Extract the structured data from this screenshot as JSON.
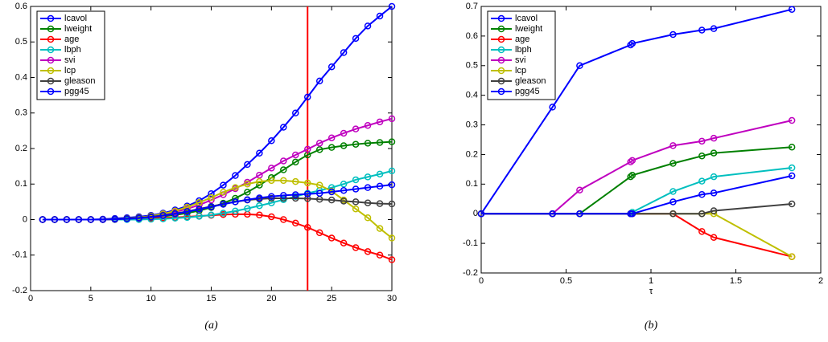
{
  "chart_data": [
    {
      "type": "line",
      "caption": "(a)",
      "x": [
        1,
        2,
        3,
        4,
        5,
        6,
        7,
        8,
        9,
        10,
        11,
        12,
        13,
        14,
        15,
        16,
        17,
        18,
        19,
        20,
        21,
        22,
        23,
        24,
        25,
        26,
        27,
        28,
        29,
        30
      ],
      "xlim": [
        0,
        30
      ],
      "xticks": [
        0,
        5,
        10,
        15,
        20,
        25,
        30
      ],
      "ylim": [
        -0.2,
        0.6
      ],
      "yticks": [
        -0.2,
        -0.1,
        0,
        0.1,
        0.2,
        0.3,
        0.4,
        0.5,
        0.6
      ],
      "legend": "upper left",
      "vline": {
        "x": 23,
        "color": "#ff0000"
      },
      "series": [
        {
          "name": "lcavol",
          "color": "#0000ff",
          "values": [
            0,
            0,
            0,
            0,
            0,
            0.001,
            0.003,
            0.005,
            0.008,
            0.012,
            0.018,
            0.027,
            0.038,
            0.053,
            0.073,
            0.097,
            0.124,
            0.155,
            0.187,
            0.222,
            0.26,
            0.3,
            0.345,
            0.39,
            0.43,
            0.47,
            0.51,
            0.545,
            0.573,
            0.6
          ]
        },
        {
          "name": "lweight",
          "color": "#008000",
          "values": [
            0,
            0,
            0,
            0,
            0,
            0,
            0.001,
            0.002,
            0.004,
            0.006,
            0.009,
            0.013,
            0.018,
            0.025,
            0.034,
            0.046,
            0.06,
            0.077,
            0.097,
            0.118,
            0.14,
            0.162,
            0.182,
            0.197,
            0.203,
            0.208,
            0.212,
            0.215,
            0.217,
            0.219
          ]
        },
        {
          "name": "age",
          "color": "#ff0000",
          "values": [
            0,
            0,
            0,
            0,
            0,
            0,
            0,
            0.001,
            0.002,
            0.003,
            0.005,
            0.006,
            0.008,
            0.01,
            0.012,
            0.014,
            0.015,
            0.015,
            0.013,
            0.008,
            0,
            -0.01,
            -0.022,
            -0.037,
            -0.052,
            -0.066,
            -0.079,
            -0.09,
            -0.1,
            -0.113
          ]
        },
        {
          "name": "lbph",
          "color": "#00bfbf",
          "values": [
            0,
            0,
            0,
            0,
            0,
            0,
            0,
            0,
            0,
            0.001,
            0.002,
            0.004,
            0.006,
            0.009,
            0.013,
            0.018,
            0.024,
            0.031,
            0.039,
            0.047,
            0.056,
            0.065,
            0.074,
            0.082,
            0.09,
            0.1,
            0.112,
            0.12,
            0.128,
            0.137
          ]
        },
        {
          "name": "svi",
          "color": "#bf00bf",
          "values": [
            0,
            0,
            0,
            0,
            0,
            0,
            0.001,
            0.003,
            0.005,
            0.009,
            0.014,
            0.021,
            0.03,
            0.041,
            0.055,
            0.07,
            0.087,
            0.105,
            0.125,
            0.145,
            0.165,
            0.182,
            0.198,
            0.215,
            0.23,
            0.243,
            0.255,
            0.265,
            0.275,
            0.284
          ]
        },
        {
          "name": "lcp",
          "color": "#bfbf00",
          "values": [
            0,
            0,
            0,
            0,
            0,
            0,
            0.001,
            0.003,
            0.006,
            0.01,
            0.016,
            0.024,
            0.035,
            0.048,
            0.062,
            0.077,
            0.09,
            0.1,
            0.107,
            0.11,
            0.11,
            0.107,
            0.103,
            0.097,
            0.08,
            0.055,
            0.03,
            0.005,
            -0.025,
            -0.052
          ]
        },
        {
          "name": "gleason",
          "color": "#404040",
          "values": [
            0,
            0,
            0,
            0,
            0,
            0,
            0.001,
            0.003,
            0.005,
            0.008,
            0.012,
            0.017,
            0.023,
            0.03,
            0.037,
            0.044,
            0.05,
            0.055,
            0.058,
            0.06,
            0.06,
            0.06,
            0.059,
            0.057,
            0.055,
            0.052,
            0.05,
            0.047,
            0.045,
            0.044
          ]
        },
        {
          "name": "pgg45",
          "color": "#0000ff",
          "values": [
            0,
            0,
            0,
            0,
            0,
            0,
            0.001,
            0.002,
            0.004,
            0.007,
            0.011,
            0.016,
            0.022,
            0.029,
            0.036,
            0.043,
            0.05,
            0.056,
            0.061,
            0.065,
            0.068,
            0.07,
            0.072,
            0.074,
            0.078,
            0.082,
            0.086,
            0.09,
            0.094,
            0.098
          ]
        }
      ]
    },
    {
      "type": "line",
      "caption": "(b)",
      "x_label": "τ",
      "x": [
        0,
        0.42,
        0.58,
        0.88,
        0.89,
        1.13,
        1.3,
        1.37,
        1.83
      ],
      "xlim": [
        0,
        2
      ],
      "xticks": [
        0,
        0.5,
        1,
        1.5,
        2
      ],
      "ylim": [
        -0.2,
        0.7
      ],
      "yticks": [
        -0.2,
        -0.1,
        0,
        0.1,
        0.2,
        0.3,
        0.4,
        0.5,
        0.6,
        0.7
      ],
      "legend": "upper left",
      "series": [
        {
          "name": "lcavol",
          "color": "#0000ff",
          "values": [
            0,
            0.36,
            0.5,
            0.57,
            0.575,
            0.605,
            0.62,
            0.625,
            0.69
          ]
        },
        {
          "name": "lweight",
          "color": "#008000",
          "values": [
            0,
            0,
            0,
            0.125,
            0.13,
            0.17,
            0.195,
            0.205,
            0.225
          ]
        },
        {
          "name": "age",
          "color": "#ff0000",
          "values": [
            0,
            0,
            0,
            0,
            0,
            0,
            -0.06,
            -0.08,
            -0.145
          ]
        },
        {
          "name": "lbph",
          "color": "#00bfbf",
          "values": [
            0,
            0,
            0,
            0,
            0.005,
            0.075,
            0.11,
            0.125,
            0.155
          ]
        },
        {
          "name": "svi",
          "color": "#bf00bf",
          "values": [
            0,
            0,
            0.08,
            0.175,
            0.18,
            0.23,
            0.245,
            0.255,
            0.315
          ]
        },
        {
          "name": "lcp",
          "color": "#bfbf00",
          "values": [
            0,
            0,
            0,
            0,
            0,
            0,
            0,
            0,
            -0.145
          ]
        },
        {
          "name": "gleason",
          "color": "#404040",
          "values": [
            0,
            0,
            0,
            0,
            0,
            0,
            0,
            0.01,
            0.033
          ]
        },
        {
          "name": "pgg45",
          "color": "#0000ff",
          "values": [
            0,
            0,
            0,
            0,
            0,
            0.04,
            0.065,
            0.07,
            0.128
          ]
        }
      ]
    }
  ]
}
